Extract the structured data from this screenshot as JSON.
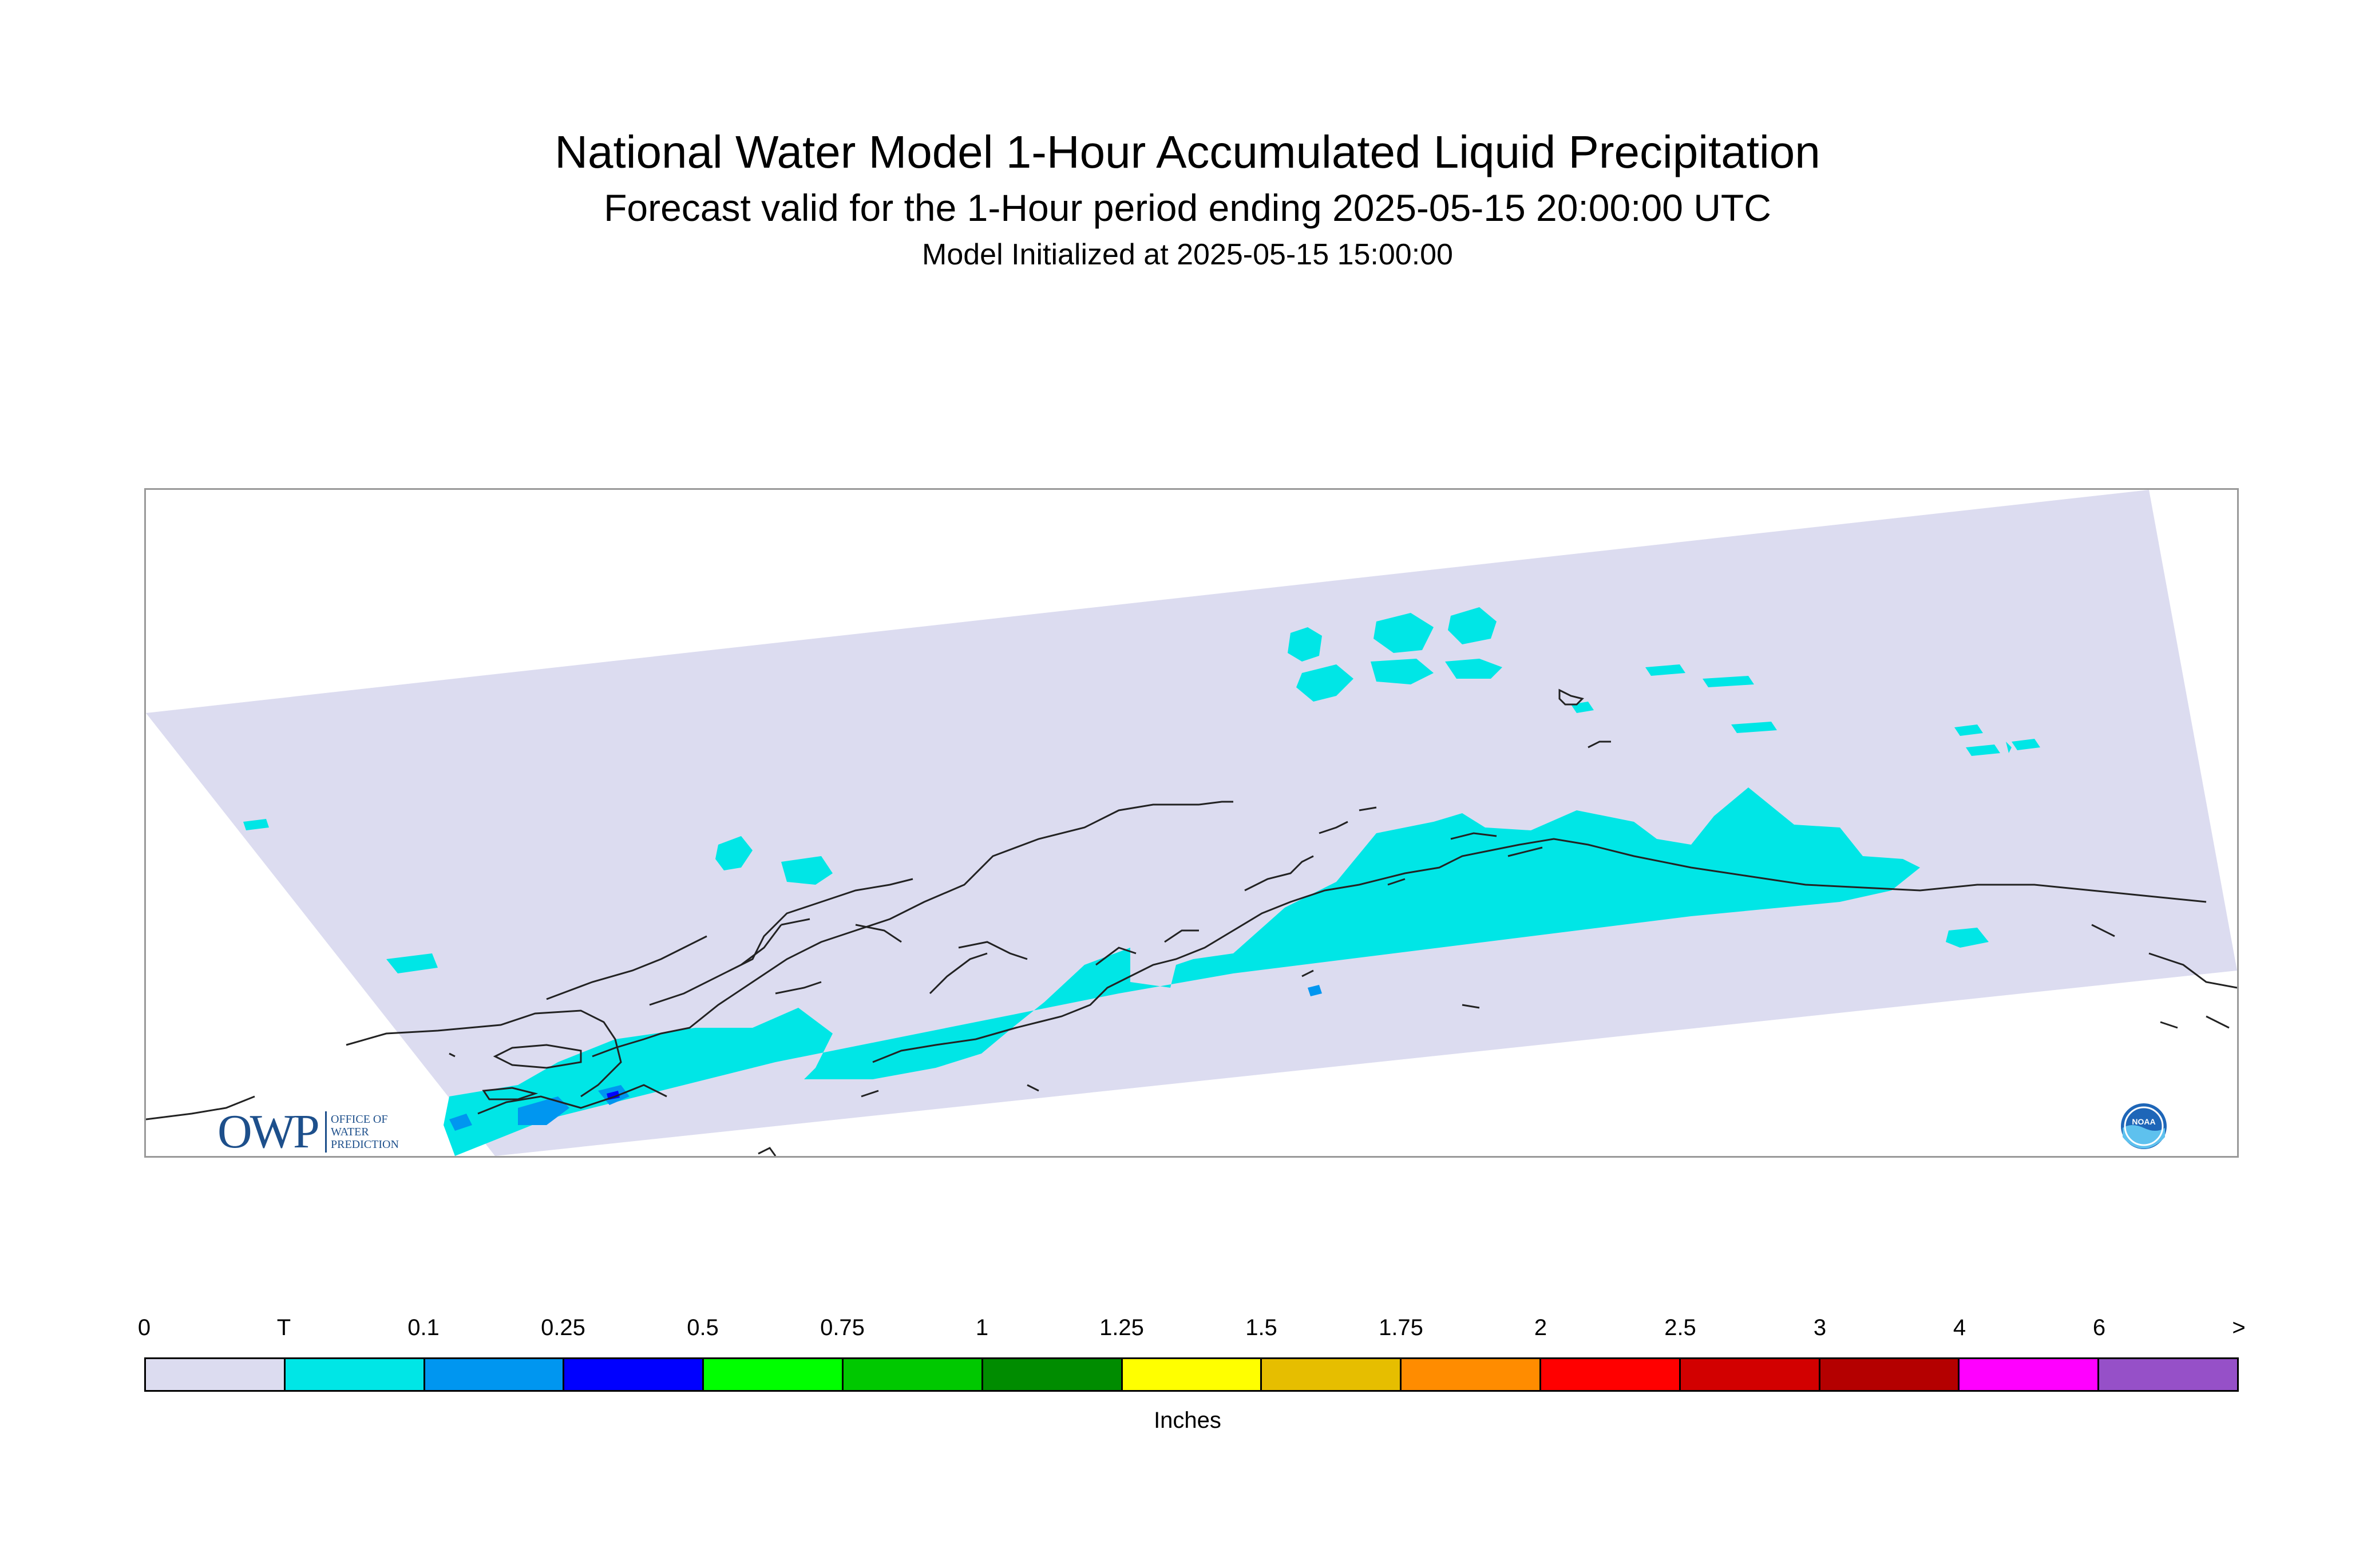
{
  "title": {
    "main": "National Water Model 1-Hour Accumulated Liquid Precipitation",
    "sub": "Forecast valid for the 1-Hour period ending 2025-05-15 20:00:00 UTC",
    "init": "Model Initialized at 2025-05-15 15:00:00"
  },
  "map": {
    "region_fill_color": "#dcdcf0",
    "coastline_color": "#222222",
    "frame_color": "#999999",
    "logos": {
      "owp": {
        "letters": "OWP",
        "line1": "OFFICE OF",
        "line2": "WATER",
        "line3": "PREDICTION"
      },
      "noaa": {
        "text": "NOAA",
        "icon": "noaa-logo-icon"
      }
    }
  },
  "legend": {
    "unit": "Inches",
    "tick_labels": [
      "0",
      "T",
      "0.1",
      "0.25",
      "0.5",
      "0.75",
      "1",
      "1.25",
      "1.5",
      "1.75",
      "2",
      "2.5",
      "3",
      "4",
      "6",
      ">"
    ],
    "colors": [
      "#dcdcf0",
      "#00e6e6",
      "#0096f0",
      "#0000ff",
      "#00ff00",
      "#00c800",
      "#008c00",
      "#ffff00",
      "#e6be00",
      "#ff8c00",
      "#ff0000",
      "#d20000",
      "#b40000",
      "#ff00ff",
      "#9650c8"
    ]
  }
}
